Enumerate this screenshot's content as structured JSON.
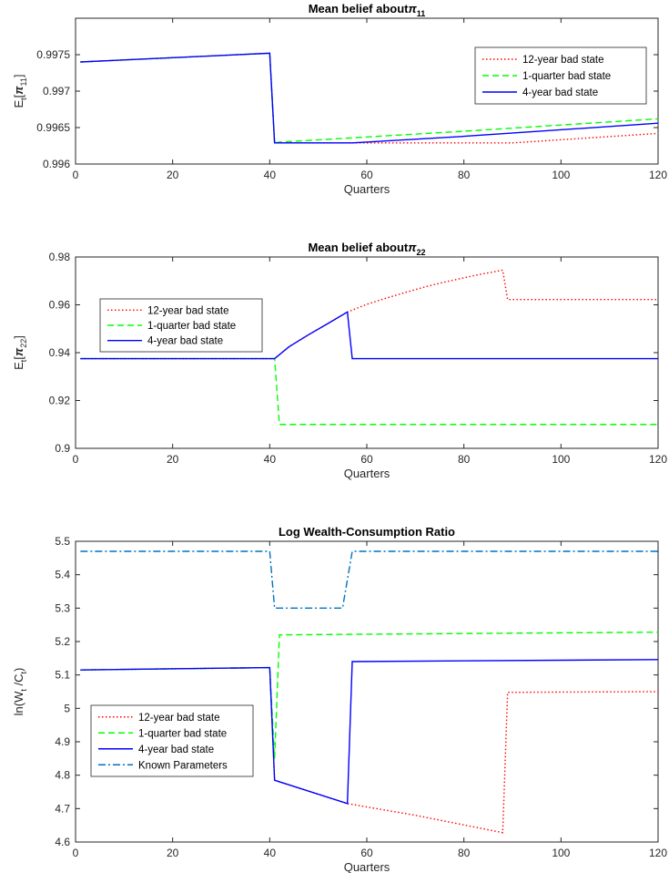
{
  "chart_data": [
    {
      "type": "line",
      "title": "Mean belief about",
      "title_symbol": "π",
      "title_subscript": "11",
      "xlabel": "Quarters",
      "ylabel_main": "E",
      "ylabel_sub": "t",
      "ylabel_bracket_open": "[",
      "ylabel_symbol": "π",
      "ylabel_symbol_sub": "11",
      "ylabel_bracket_close": "]",
      "xlim": [
        0,
        120
      ],
      "ylim": [
        0.996,
        0.998
      ],
      "xticks": [
        0,
        20,
        40,
        60,
        80,
        100,
        120
      ],
      "yticks": [
        0.996,
        0.9965,
        0.997,
        0.9975
      ],
      "ytick_labels": [
        "0.996",
        "0.9965",
        "0.997",
        "0.9975"
      ],
      "grid": false,
      "legend_location": "top-right",
      "series": [
        {
          "name": "12-year bad state",
          "color": "#ff0000",
          "style": "dotted",
          "points": [
            [
              1,
              0.9974
            ],
            [
              40,
              0.99752
            ],
            [
              41,
              0.99629
            ],
            [
              57,
              0.99629
            ],
            [
              90,
              0.99629
            ],
            [
              120,
              0.99642
            ]
          ]
        },
        {
          "name": "1-quarter bad state",
          "color": "#00ff00",
          "style": "dashed",
          "points": [
            [
              1,
              0.9974
            ],
            [
              40,
              0.99752
            ],
            [
              41,
              0.99629
            ],
            [
              42,
              0.9963
            ],
            [
              80,
              0.99645
            ],
            [
              120,
              0.99662
            ]
          ]
        },
        {
          "name": "4-year bad state",
          "color": "#0000ff",
          "style": "solid",
          "points": [
            [
              1,
              0.9974
            ],
            [
              40,
              0.99752
            ],
            [
              41,
              0.99629
            ],
            [
              57,
              0.99629
            ],
            [
              80,
              0.99638
            ],
            [
              120,
              0.99656
            ]
          ]
        }
      ]
    },
    {
      "type": "line",
      "title": "Mean belief about",
      "title_symbol": "π",
      "title_subscript": "22",
      "xlabel": "Quarters",
      "ylabel_main": "E",
      "ylabel_sub": "t",
      "ylabel_bracket_open": "[",
      "ylabel_symbol": "π",
      "ylabel_symbol_sub": "22",
      "ylabel_bracket_close": "]",
      "xlim": [
        0,
        120
      ],
      "ylim": [
        0.9,
        0.98
      ],
      "xticks": [
        0,
        20,
        40,
        60,
        80,
        100,
        120
      ],
      "yticks": [
        0.9,
        0.92,
        0.94,
        0.96,
        0.98
      ],
      "ytick_labels": [
        "0.9",
        "0.92",
        "0.94",
        "0.96",
        "0.98"
      ],
      "grid": false,
      "legend_location": "middle-left",
      "series": [
        {
          "name": "12-year bad state",
          "color": "#ff0000",
          "style": "dotted",
          "points": [
            [
              1,
              0.9375
            ],
            [
              41,
              0.9375
            ],
            [
              44,
              0.9425
            ],
            [
              48,
              0.9475
            ],
            [
              52,
              0.9522
            ],
            [
              56,
              0.957
            ],
            [
              60,
              0.9602
            ],
            [
              64,
              0.9628
            ],
            [
              68,
              0.9652
            ],
            [
              72,
              0.9675
            ],
            [
              76,
              0.9695
            ],
            [
              80,
              0.9713
            ],
            [
              84,
              0.973
            ],
            [
              88,
              0.9745
            ],
            [
              89,
              0.9622
            ],
            [
              120,
              0.9622
            ]
          ]
        },
        {
          "name": "1-quarter bad state",
          "color": "#00ff00",
          "style": "dashed",
          "points": [
            [
              1,
              0.9375
            ],
            [
              41,
              0.9375
            ],
            [
              42,
              0.91
            ],
            [
              120,
              0.91
            ]
          ]
        },
        {
          "name": "4-year bad state",
          "color": "#0000ff",
          "style": "solid",
          "points": [
            [
              1,
              0.9375
            ],
            [
              41,
              0.9375
            ],
            [
              44,
              0.9425
            ],
            [
              48,
              0.9475
            ],
            [
              52,
              0.9522
            ],
            [
              56,
              0.957
            ],
            [
              57,
              0.9375
            ],
            [
              120,
              0.9375
            ]
          ]
        }
      ]
    },
    {
      "type": "line",
      "title": "Log Wealth-Consumption Ratio",
      "xlabel": "Quarters",
      "ylabel_main": "ln(W",
      "ylabel_sub": "t",
      "ylabel_mid": " /C",
      "ylabel_sub2": "t",
      "ylabel_end": ")",
      "xlim": [
        0,
        120
      ],
      "ylim": [
        4.6,
        5.5
      ],
      "xticks": [
        0,
        20,
        40,
        60,
        80,
        100,
        120
      ],
      "yticks": [
        4.6,
        4.7,
        4.8,
        4.9,
        5.0,
        5.1,
        5.2,
        5.3,
        5.4,
        5.5
      ],
      "ytick_labels": [
        "4.6",
        "4.7",
        "4.8",
        "4.9",
        "5",
        "5.1",
        "5.2",
        "5.3",
        "5.4",
        "5.5"
      ],
      "grid": false,
      "legend_location": "bottom-left",
      "series": [
        {
          "name": "12-year bad state",
          "color": "#ff0000",
          "style": "dotted",
          "points": [
            [
              1,
              5.115
            ],
            [
              40,
              5.122
            ],
            [
              41,
              4.785
            ],
            [
              56,
              4.715
            ],
            [
              70,
              4.68
            ],
            [
              88,
              4.628
            ],
            [
              89,
              5.048
            ],
            [
              120,
              5.05
            ]
          ]
        },
        {
          "name": "1-quarter bad state",
          "color": "#00ff00",
          "style": "dashed",
          "points": [
            [
              1,
              5.115
            ],
            [
              40,
              5.122
            ],
            [
              41,
              4.85
            ],
            [
              42,
              5.22
            ],
            [
              80,
              5.224
            ],
            [
              120,
              5.228
            ]
          ]
        },
        {
          "name": "4-year bad state",
          "color": "#0000ff",
          "style": "solid",
          "points": [
            [
              1,
              5.115
            ],
            [
              40,
              5.122
            ],
            [
              41,
              4.785
            ],
            [
              56,
              4.715
            ],
            [
              57,
              5.14
            ],
            [
              120,
              5.146
            ]
          ]
        },
        {
          "name": "Known Parameters",
          "color": "#0072bd",
          "style": "dashdot",
          "points": [
            [
              1,
              5.47
            ],
            [
              40,
              5.47
            ],
            [
              41,
              5.3
            ],
            [
              55,
              5.3
            ],
            [
              57,
              5.47
            ],
            [
              120,
              5.47
            ]
          ]
        }
      ]
    }
  ]
}
